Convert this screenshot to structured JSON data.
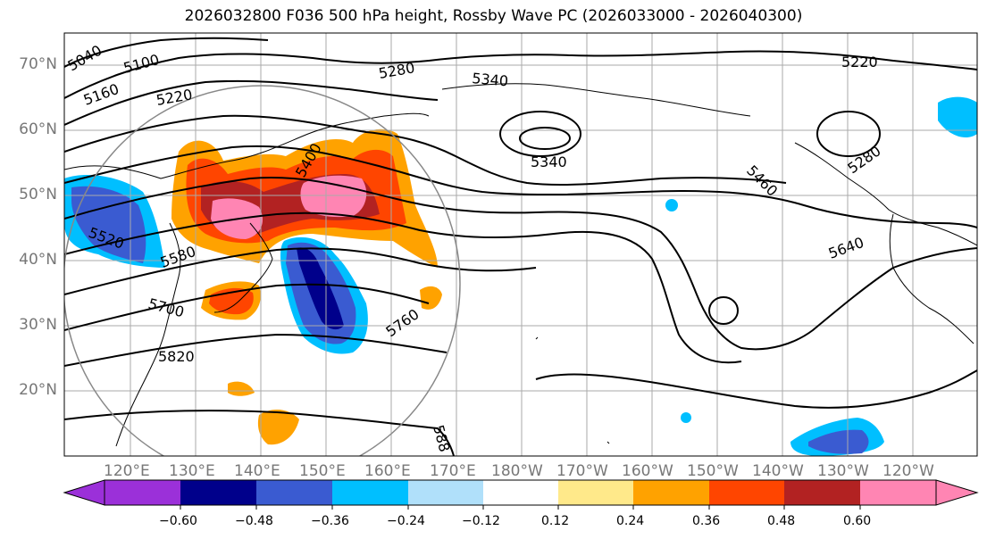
{
  "title": "2026032800 F036 500 hPa height, Rossby Wave PC (2026033000 - 2026040300)",
  "map": {
    "lat_labels": [
      "70°N",
      "60°N",
      "50°N",
      "40°N",
      "30°N",
      "20°N"
    ],
    "lon_labels": [
      "120°E",
      "130°E",
      "140°E",
      "150°E",
      "160°E",
      "170°E",
      "180°W",
      "170°W",
      "160°W",
      "150°W",
      "140°W",
      "130°W",
      "120°W"
    ],
    "contour_labels": [
      "5040",
      "5100",
      "5160",
      "5220",
      "5280",
      "5340",
      "5340",
      "5220",
      "5280",
      "5400",
      "5460",
      "5520",
      "5580",
      "5640",
      "5700",
      "5760",
      "5820",
      "588"
    ],
    "colors": {
      "ocean": "#ffffff",
      "grid": "#aaaaaa",
      "contour": "#000000",
      "circle": "#888888"
    }
  },
  "colorbar": {
    "ticks": [
      "−0.60",
      "−0.48",
      "−0.36",
      "−0.24",
      "−0.12",
      "0.12",
      "0.24",
      "0.36",
      "0.48",
      "0.60"
    ],
    "colors": [
      "#9b30d9",
      "#00008b",
      "#3a5bd1",
      "#00bfff",
      "#b0e0fa",
      "#ffffff",
      "#ffe98a",
      "#ffa200",
      "#ff4500",
      "#b22222",
      "#ff85b3"
    ]
  }
}
